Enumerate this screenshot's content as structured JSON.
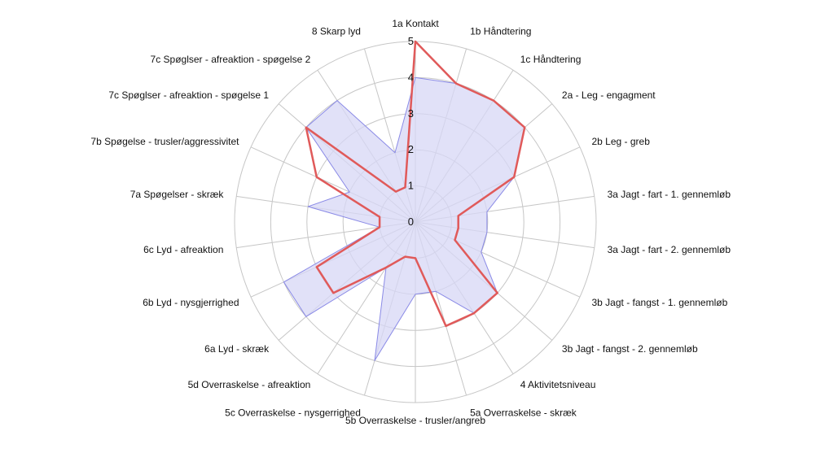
{
  "chart_data": {
    "type": "radar",
    "title": "",
    "rmin": 0,
    "rmax": 5,
    "ticks": [
      "0",
      "1",
      "2",
      "3",
      "4",
      "5"
    ],
    "grid": true,
    "legend": "none",
    "categories": [
      "1a Kontakt",
      "1b Håndtering",
      "1c Håndtering",
      "2a - Leg - engagment",
      "2b Leg - greb",
      "3a Jagt - fart - 1. gennemløb",
      "3a Jagt - fart - 2. gennemløb",
      "3b Jagt - fangst - 1. gennemløb",
      "3b Jagt - fangst - 2. gennemløb",
      "4 Aktivitetsniveau",
      "5a Overraskelse - skræk",
      "5b Overraskelse - trusler/angreb",
      "5c Overraskelse - nysgerrighed",
      "5d Overraskelse - afreaktion",
      "6a Lyd - skræk",
      "6b Lyd - nysgjerrighed",
      "6c Lyd - afreaktion",
      "7a Spøgelser - skræk",
      "7b Spøgelse - trusler/aggressivitet",
      "7c Spøglser - afreaktion - spøgelse 1",
      "7c Spøglser - afreaktion - spøgelse 2",
      "8 Skarp lyd"
    ],
    "series": [
      {
        "color": "#e05a5a",
        "fill": "none",
        "values": [
          5,
          4,
          4,
          4,
          3,
          1.2,
          1.2,
          1.2,
          3,
          3,
          3,
          1,
          1,
          1.5,
          3,
          3,
          1,
          1,
          3,
          4,
          1,
          1
        ]
      },
      {
        "color": "#8a8ae6",
        "fill": "#d7d7f5",
        "values": [
          4,
          4,
          4,
          4,
          3,
          2,
          2,
          2,
          3,
          3,
          2,
          2,
          4,
          1.5,
          4,
          4,
          1,
          3,
          2,
          4,
          4,
          2
        ]
      }
    ]
  }
}
